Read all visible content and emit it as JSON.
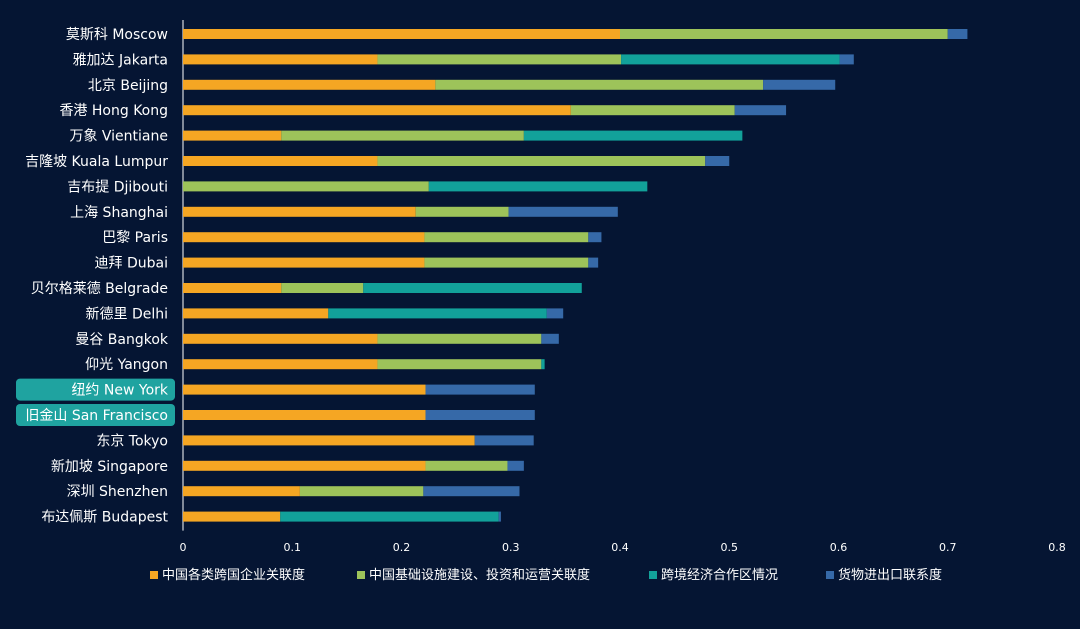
{
  "chart_data": {
    "type": "bar",
    "orientation": "horizontal",
    "stacked": true,
    "categories": [
      "莫斯科 Moscow",
      "雅加达 Jakarta",
      "北京 Beijing",
      "香港 Hong Kong",
      "万象 Vientiane",
      "吉隆坡 Kuala Lumpur",
      "吉布提 Djibouti",
      "上海 Shanghai",
      "巴黎 Paris",
      "迪拜 Dubai",
      "贝尔格莱德 Belgrade",
      "新德里 Delhi",
      "曼谷 Bangkok",
      "仰光 Yangon",
      "纽约 New York",
      "旧金山 San Francisco",
      "东京 Tokyo",
      "新加坡 Singapore",
      "深圳 Shenzhen",
      "布达佩斯 Budapest"
    ],
    "highlighted_categories": [
      "纽约 New York",
      "旧金山 San Francisco"
    ],
    "series": [
      {
        "name": "中国各类跨国企业关联度",
        "color": "#F5A623",
        "values": [
          0.4,
          0.178,
          0.231,
          0.355,
          0.09,
          0.178,
          0.0,
          0.213,
          0.221,
          0.221,
          0.09,
          0.133,
          0.178,
          0.178,
          0.222,
          0.222,
          0.267,
          0.222,
          0.107,
          0.089
        ]
      },
      {
        "name": "中国基础设施建设、投资和运营关联度",
        "color": "#9DC35A",
        "values": [
          0.3,
          0.223,
          0.3,
          0.15,
          0.222,
          0.3,
          0.225,
          0.085,
          0.15,
          0.15,
          0.075,
          0.0,
          0.15,
          0.15,
          0.0,
          0.0,
          0.0,
          0.075,
          0.113,
          0.0
        ]
      },
      {
        "name": "跨境经济合作区情况",
        "color": "#12A19A",
        "values": [
          0.0,
          0.2,
          0.0,
          0.0,
          0.2,
          0.0,
          0.2,
          0.0,
          0.0,
          0.0,
          0.2,
          0.2,
          0.0,
          0.003,
          0.0,
          0.0,
          0.0,
          0.0,
          0.0,
          0.2
        ]
      },
      {
        "name": "货物进出口联系度",
        "color": "#3669A8",
        "values": [
          0.018,
          0.013,
          0.066,
          0.047,
          0.0,
          0.022,
          0.0,
          0.1,
          0.012,
          0.009,
          0.0,
          0.015,
          0.016,
          0.0,
          0.1,
          0.1,
          0.054,
          0.015,
          0.088,
          0.002
        ]
      }
    ],
    "xlim": [
      0,
      0.8
    ],
    "xticks": [
      "0",
      "0.1",
      "0.2",
      "0.3",
      "0.4",
      "0.5",
      "0.6",
      "0.7",
      "0.8"
    ],
    "xtick_values": [
      0,
      0.1,
      0.2,
      0.3,
      0.4,
      0.5,
      0.6,
      0.7,
      0.8
    ],
    "title": "",
    "xlabel": "",
    "ylabel": "",
    "grid": false,
    "legend_position": "bottom",
    "colors": {
      "background": "#051533",
      "text": "#FFFFFF",
      "axis": "#FFFFFF",
      "highlight": "#1FA3A0"
    }
  }
}
